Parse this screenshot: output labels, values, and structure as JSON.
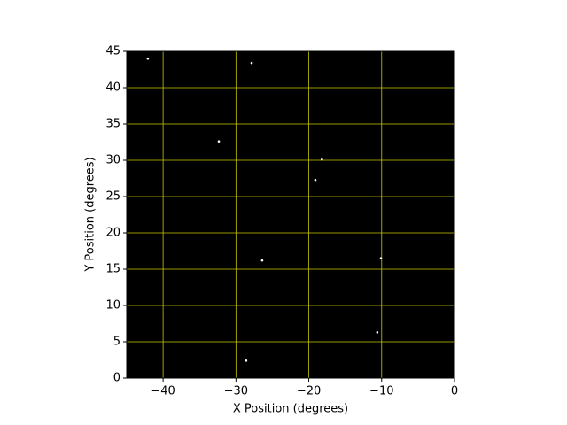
{
  "chart_data": {
    "type": "scatter",
    "xlabel": "X Position (degrees)",
    "ylabel": "Y Position (degrees)",
    "x": [
      -42.1,
      -27.85,
      -32.35,
      -18.2,
      -19.1,
      -26.4,
      -10.1,
      -10.6,
      -28.6
    ],
    "y": [
      44.0,
      43.4,
      32.6,
      30.1,
      27.3,
      16.2,
      16.5,
      6.3,
      2.4
    ],
    "color": "#ffffff",
    "background": "#000000",
    "grid": true,
    "grid_color": "#c8c800",
    "xlim": [
      -45,
      0
    ],
    "ylim": [
      0,
      45
    ],
    "xticks": [
      {
        "value": -40,
        "label": "−40"
      },
      {
        "value": -30,
        "label": "−30"
      },
      {
        "value": -20,
        "label": "−20"
      },
      {
        "value": -10,
        "label": "−10"
      },
      0
    ],
    "yticks": [
      0,
      5,
      10,
      15,
      20,
      25,
      30,
      35,
      40,
      45
    ]
  }
}
